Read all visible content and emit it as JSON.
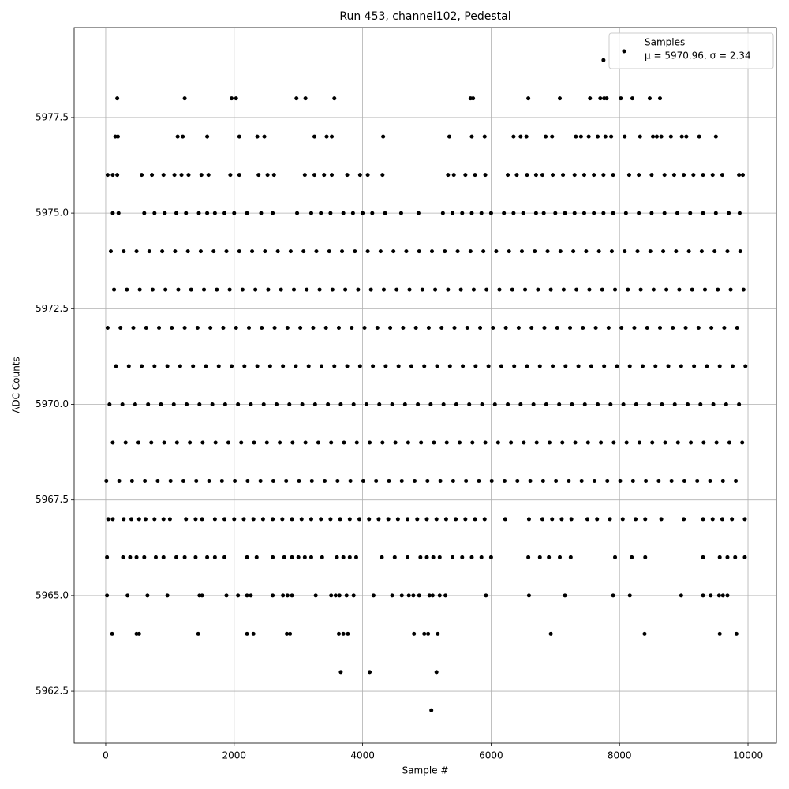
{
  "chart_data": {
    "type": "scatter",
    "title": "Run 453, channel102, Pedestal",
    "x_label": "Sample #",
    "y_label": "ADC Counts",
    "legend": {
      "entries": [
        "Samples",
        "μ = 5970.96, σ = 2.34"
      ],
      "position": "upper right"
    },
    "color": "#000000",
    "grid": true,
    "xlim": [
      -491,
      10442
    ],
    "ylim": [
      5961.14,
      5979.85
    ],
    "xticks": [
      0,
      2000,
      4000,
      6000,
      8000,
      10000
    ],
    "yticks": [
      5962.5,
      {
        "value": 5965,
        "label": "5965.0"
      },
      5967.5,
      {
        "value": 5970,
        "label": "5970.0"
      },
      5972.5,
      {
        "value": 5975,
        "label": "5975.0"
      },
      5977.5
    ],
    "x": [
      7750,
      180,
      1230,
      1960,
      2030,
      2970,
      3110,
      3560,
      5680,
      5720,
      6580,
      7070,
      7540,
      7700,
      7760,
      7800,
      8020,
      8200,
      8470,
      8630,
      150,
      190,
      1120,
      1200,
      1580,
      2080,
      2360,
      2470,
      3250,
      3440,
      3520,
      4320,
      5350,
      5700,
      5900,
      6350,
      6460,
      6550,
      6850,
      6950,
      7320,
      7400,
      7520,
      7660,
      7780,
      7870,
      8080,
      8320,
      8520,
      8580,
      8650,
      8800,
      8970,
      9040,
      9240,
      9500,
      30,
      110,
      180,
      560,
      720,
      900,
      1070,
      1180,
      1290,
      1490,
      1600,
      1940,
      2080,
      2380,
      2520,
      2620,
      3100,
      3250,
      3400,
      3520,
      3760,
      3960,
      4080,
      4310,
      5330,
      5420,
      5600,
      5750,
      5910,
      6260,
      6400,
      6560,
      6700,
      6800,
      6960,
      7120,
      7300,
      7450,
      7600,
      7750,
      7900,
      8150,
      8300,
      8500,
      8700,
      8850,
      9000,
      9150,
      9300,
      9450,
      9600,
      9860,
      9920,
      110,
      200,
      600,
      760,
      920,
      1100,
      1250,
      1450,
      1580,
      1700,
      1850,
      2000,
      2200,
      2420,
      2600,
      2980,
      3200,
      3350,
      3500,
      3700,
      3850,
      4000,
      4150,
      4350,
      4600,
      4870,
      5250,
      5400,
      5550,
      5700,
      5850,
      6000,
      6200,
      6350,
      6500,
      6700,
      6820,
      7000,
      7150,
      7300,
      7450,
      7600,
      7750,
      7900,
      8100,
      8300,
      8500,
      8700,
      8900,
      9100,
      9300,
      9500,
      9700,
      9870,
      80,
      280,
      480,
      680,
      880,
      1080,
      1280,
      1480,
      1680,
      1880,
      2080,
      2280,
      2480,
      2680,
      2880,
      3080,
      3280,
      3480,
      3680,
      3880,
      4080,
      4280,
      4480,
      4680,
      4880,
      5080,
      5280,
      5480,
      5680,
      5880,
      6080,
      6280,
      6480,
      6680,
      6880,
      7080,
      7280,
      7480,
      7680,
      7880,
      8080,
      8280,
      8480,
      8680,
      8880,
      9080,
      9280,
      9480,
      9680,
      9880,
      130,
      330,
      530,
      730,
      930,
      1130,
      1330,
      1530,
      1730,
      1930,
      2130,
      2330,
      2530,
      2730,
      2930,
      3130,
      3330,
      3530,
      3730,
      3930,
      4130,
      4330,
      4530,
      4730,
      4930,
      5130,
      5330,
      5530,
      5730,
      5930,
      6130,
      6330,
      6530,
      6730,
      6930,
      7130,
      7330,
      7530,
      7730,
      7930,
      8130,
      8330,
      8530,
      8730,
      8930,
      9130,
      9330,
      9530,
      9730,
      9930,
      30,
      230,
      430,
      630,
      830,
      1030,
      1230,
      1430,
      1630,
      1830,
      2030,
      2230,
      2430,
      2630,
      2830,
      3030,
      3230,
      3430,
      3630,
      3830,
      4030,
      4230,
      4430,
      4630,
      4830,
      5030,
      5230,
      5430,
      5630,
      5830,
      6030,
      6230,
      6430,
      6630,
      6830,
      7030,
      7230,
      7430,
      7630,
      7830,
      8030,
      8230,
      8430,
      8630,
      8830,
      9030,
      9230,
      9430,
      9630,
      9830,
      160,
      360,
      560,
      760,
      960,
      1160,
      1360,
      1560,
      1760,
      1960,
      2160,
      2360,
      2560,
      2760,
      2960,
      3160,
      3360,
      3560,
      3760,
      3960,
      4160,
      4360,
      4560,
      4760,
      4960,
      5160,
      5360,
      5560,
      5760,
      5960,
      6160,
      6360,
      6560,
      6760,
      6960,
      7160,
      7360,
      7560,
      7760,
      7960,
      8160,
      8360,
      8560,
      8760,
      8960,
      9160,
      9360,
      9560,
      9760,
      9960,
      60,
      260,
      460,
      660,
      860,
      1060,
      1260,
      1460,
      1660,
      1860,
      2060,
      2260,
      2460,
      2660,
      2860,
      3060,
      3260,
      3460,
      3660,
      3860,
      4060,
      4260,
      4460,
      4660,
      4860,
      5060,
      5260,
      5460,
      5660,
      5860,
      6060,
      6260,
      6460,
      6660,
      6860,
      7060,
      7260,
      7460,
      7660,
      7860,
      8060,
      8260,
      8460,
      8660,
      8860,
      9060,
      9260,
      9460,
      9660,
      9860,
      110,
      310,
      510,
      710,
      910,
      1110,
      1310,
      1510,
      1710,
      1910,
      2110,
      2310,
      2510,
      2710,
      2910,
      3110,
      3310,
      3510,
      3710,
      3910,
      4110,
      4310,
      4510,
      4710,
      4910,
      5110,
      5310,
      5510,
      5710,
      5910,
      6110,
      6310,
      6510,
      6710,
      6910,
      7110,
      7310,
      7510,
      7710,
      7910,
      8110,
      8310,
      8510,
      8710,
      8910,
      9110,
      9310,
      9510,
      9710,
      9910,
      10,
      210,
      410,
      610,
      810,
      1010,
      1210,
      1410,
      1610,
      1810,
      2010,
      2210,
      2410,
      2610,
      2810,
      3010,
      3210,
      3410,
      3610,
      3810,
      4010,
      4210,
      4410,
      4610,
      4810,
      5010,
      5210,
      5410,
      5610,
      5810,
      6010,
      6210,
      6410,
      6610,
      6810,
      7010,
      7210,
      7410,
      7610,
      7810,
      8010,
      8210,
      8410,
      8610,
      8810,
      9010,
      9210,
      9410,
      9610,
      9810,
      40,
      110,
      280,
      400,
      520,
      620,
      760,
      900,
      1000,
      1250,
      1400,
      1500,
      1700,
      1850,
      2000,
      2150,
      2300,
      2450,
      2600,
      2750,
      2900,
      3050,
      3200,
      3350,
      3500,
      3650,
      3800,
      3950,
      4100,
      4250,
      4400,
      4550,
      4700,
      4850,
      5000,
      5150,
      5300,
      5450,
      5600,
      5750,
      5900,
      6220,
      6590,
      6800,
      6950,
      7100,
      7250,
      7500,
      7650,
      7850,
      8050,
      8250,
      8400,
      8650,
      9000,
      9300,
      9450,
      9600,
      9750,
      9950,
      20,
      270,
      380,
      480,
      600,
      780,
      900,
      1100,
      1230,
      1400,
      1580,
      1700,
      1850,
      2200,
      2350,
      2600,
      2780,
      2900,
      3000,
      3100,
      3200,
      3370,
      3600,
      3700,
      3800,
      3900,
      4300,
      4500,
      4700,
      4900,
      5000,
      5100,
      5200,
      5400,
      5550,
      5700,
      5850,
      6000,
      6580,
      6760,
      6900,
      7070,
      7240,
      7930,
      8190,
      8400,
      9300,
      9560,
      9680,
      9800,
      9950,
      20,
      340,
      650,
      960,
      1460,
      1500,
      1880,
      2060,
      2200,
      2260,
      2600,
      2760,
      2830,
      2900,
      3270,
      3510,
      3580,
      3640,
      3750,
      3860,
      4170,
      4460,
      4610,
      4720,
      4790,
      4880,
      5040,
      5090,
      5200,
      5290,
      5920,
      6590,
      7150,
      7900,
      8160,
      8960,
      9300,
      9420,
      9550,
      9610,
      9680,
      100,
      480,
      520,
      1440,
      2200,
      2300,
      2820,
      2870,
      3630,
      3700,
      3770,
      4800,
      4960,
      5020,
      5170,
      6930,
      8390,
      9560,
      9820,
      3660,
      4110,
      5150,
      5070
    ],
    "y": [
      5979,
      5978,
      5978,
      5978,
      5978,
      5978,
      5978,
      5978,
      5978,
      5978,
      5978,
      5978,
      5978,
      5978,
      5978,
      5978,
      5978,
      5978,
      5978,
      5978,
      5977,
      5977,
      5977,
      5977,
      5977,
      5977,
      5977,
      5977,
      5977,
      5977,
      5977,
      5977,
      5977,
      5977,
      5977,
      5977,
      5977,
      5977,
      5977,
      5977,
      5977,
      5977,
      5977,
      5977,
      5977,
      5977,
      5977,
      5977,
      5977,
      5977,
      5977,
      5977,
      5977,
      5977,
      5977,
      5977,
      5976,
      5976,
      5976,
      5976,
      5976,
      5976,
      5976,
      5976,
      5976,
      5976,
      5976,
      5976,
      5976,
      5976,
      5976,
      5976,
      5976,
      5976,
      5976,
      5976,
      5976,
      5976,
      5976,
      5976,
      5976,
      5976,
      5976,
      5976,
      5976,
      5976,
      5976,
      5976,
      5976,
      5976,
      5976,
      5976,
      5976,
      5976,
      5976,
      5976,
      5976,
      5976,
      5976,
      5976,
      5976,
      5976,
      5976,
      5976,
      5976,
      5976,
      5976,
      5976,
      5976,
      5975,
      5975,
      5975,
      5975,
      5975,
      5975,
      5975,
      5975,
      5975,
      5975,
      5975,
      5975,
      5975,
      5975,
      5975,
      5975,
      5975,
      5975,
      5975,
      5975,
      5975,
      5975,
      5975,
      5975,
      5975,
      5975,
      5975,
      5975,
      5975,
      5975,
      5975,
      5975,
      5975,
      5975,
      5975,
      5975,
      5975,
      5975,
      5975,
      5975,
      5975,
      5975,
      5975,
      5975,
      5975,
      5975,
      5975,
      5975,
      5975,
      5975,
      5975,
      5975,
      5975,
      5975,
      5974,
      5974,
      5974,
      5974,
      5974,
      5974,
      5974,
      5974,
      5974,
      5974,
      5974,
      5974,
      5974,
      5974,
      5974,
      5974,
      5974,
      5974,
      5974,
      5974,
      5974,
      5974,
      5974,
      5974,
      5974,
      5974,
      5974,
      5974,
      5974,
      5974,
      5974,
      5974,
      5974,
      5974,
      5974,
      5974,
      5974,
      5974,
      5974,
      5974,
      5974,
      5974,
      5974,
      5974,
      5974,
      5974,
      5974,
      5974,
      5974,
      5974,
      5973,
      5973,
      5973,
      5973,
      5973,
      5973,
      5973,
      5973,
      5973,
      5973,
      5973,
      5973,
      5973,
      5973,
      5973,
      5973,
      5973,
      5973,
      5973,
      5973,
      5973,
      5973,
      5973,
      5973,
      5973,
      5973,
      5973,
      5973,
      5973,
      5973,
      5973,
      5973,
      5973,
      5973,
      5973,
      5973,
      5973,
      5973,
      5973,
      5973,
      5973,
      5973,
      5973,
      5973,
      5973,
      5973,
      5973,
      5973,
      5973,
      5973,
      5972,
      5972,
      5972,
      5972,
      5972,
      5972,
      5972,
      5972,
      5972,
      5972,
      5972,
      5972,
      5972,
      5972,
      5972,
      5972,
      5972,
      5972,
      5972,
      5972,
      5972,
      5972,
      5972,
      5972,
      5972,
      5972,
      5972,
      5972,
      5972,
      5972,
      5972,
      5972,
      5972,
      5972,
      5972,
      5972,
      5972,
      5972,
      5972,
      5972,
      5972,
      5972,
      5972,
      5972,
      5972,
      5972,
      5972,
      5972,
      5972,
      5972,
      5971,
      5971,
      5971,
      5971,
      5971,
      5971,
      5971,
      5971,
      5971,
      5971,
      5971,
      5971,
      5971,
      5971,
      5971,
      5971,
      5971,
      5971,
      5971,
      5971,
      5971,
      5971,
      5971,
      5971,
      5971,
      5971,
      5971,
      5971,
      5971,
      5971,
      5971,
      5971,
      5971,
      5971,
      5971,
      5971,
      5971,
      5971,
      5971,
      5971,
      5971,
      5971,
      5971,
      5971,
      5971,
      5971,
      5971,
      5971,
      5971,
      5971,
      5970,
      5970,
      5970,
      5970,
      5970,
      5970,
      5970,
      5970,
      5970,
      5970,
      5970,
      5970,
      5970,
      5970,
      5970,
      5970,
      5970,
      5970,
      5970,
      5970,
      5970,
      5970,
      5970,
      5970,
      5970,
      5970,
      5970,
      5970,
      5970,
      5970,
      5970,
      5970,
      5970,
      5970,
      5970,
      5970,
      5970,
      5970,
      5970,
      5970,
      5970,
      5970,
      5970,
      5970,
      5970,
      5970,
      5970,
      5970,
      5970,
      5970,
      5969,
      5969,
      5969,
      5969,
      5969,
      5969,
      5969,
      5969,
      5969,
      5969,
      5969,
      5969,
      5969,
      5969,
      5969,
      5969,
      5969,
      5969,
      5969,
      5969,
      5969,
      5969,
      5969,
      5969,
      5969,
      5969,
      5969,
      5969,
      5969,
      5969,
      5969,
      5969,
      5969,
      5969,
      5969,
      5969,
      5969,
      5969,
      5969,
      5969,
      5969,
      5969,
      5969,
      5969,
      5969,
      5969,
      5969,
      5969,
      5969,
      5969,
      5968,
      5968,
      5968,
      5968,
      5968,
      5968,
      5968,
      5968,
      5968,
      5968,
      5968,
      5968,
      5968,
      5968,
      5968,
      5968,
      5968,
      5968,
      5968,
      5968,
      5968,
      5968,
      5968,
      5968,
      5968,
      5968,
      5968,
      5968,
      5968,
      5968,
      5968,
      5968,
      5968,
      5968,
      5968,
      5968,
      5968,
      5968,
      5968,
      5968,
      5968,
      5968,
      5968,
      5968,
      5968,
      5968,
      5968,
      5968,
      5968,
      5968,
      5967,
      5967,
      5967,
      5967,
      5967,
      5967,
      5967,
      5967,
      5967,
      5967,
      5967,
      5967,
      5967,
      5967,
      5967,
      5967,
      5967,
      5967,
      5967,
      5967,
      5967,
      5967,
      5967,
      5967,
      5967,
      5967,
      5967,
      5967,
      5967,
      5967,
      5967,
      5967,
      5967,
      5967,
      5967,
      5967,
      5967,
      5967,
      5967,
      5967,
      5967,
      5967,
      5967,
      5967,
      5967,
      5967,
      5967,
      5967,
      5967,
      5967,
      5967,
      5967,
      5967,
      5967,
      5967,
      5967,
      5967,
      5967,
      5967,
      5967,
      5966,
      5966,
      5966,
      5966,
      5966,
      5966,
      5966,
      5966,
      5966,
      5966,
      5966,
      5966,
      5966,
      5966,
      5966,
      5966,
      5966,
      5966,
      5966,
      5966,
      5966,
      5966,
      5966,
      5966,
      5966,
      5966,
      5966,
      5966,
      5966,
      5966,
      5966,
      5966,
      5966,
      5966,
      5966,
      5966,
      5966,
      5966,
      5966,
      5966,
      5966,
      5966,
      5966,
      5966,
      5966,
      5966,
      5966,
      5966,
      5966,
      5966,
      5966,
      5965,
      5965,
      5965,
      5965,
      5965,
      5965,
      5965,
      5965,
      5965,
      5965,
      5965,
      5965,
      5965,
      5965,
      5965,
      5965,
      5965,
      5965,
      5965,
      5965,
      5965,
      5965,
      5965,
      5965,
      5965,
      5965,
      5965,
      5965,
      5965,
      5965,
      5965,
      5965,
      5965,
      5965,
      5965,
      5965,
      5965,
      5965,
      5965,
      5965,
      5965,
      5964,
      5964,
      5964,
      5964,
      5964,
      5964,
      5964,
      5964,
      5964,
      5964,
      5964,
      5964,
      5964,
      5964,
      5964,
      5964,
      5964,
      5964,
      5964,
      5963,
      5963,
      5963,
      5962
    ]
  }
}
